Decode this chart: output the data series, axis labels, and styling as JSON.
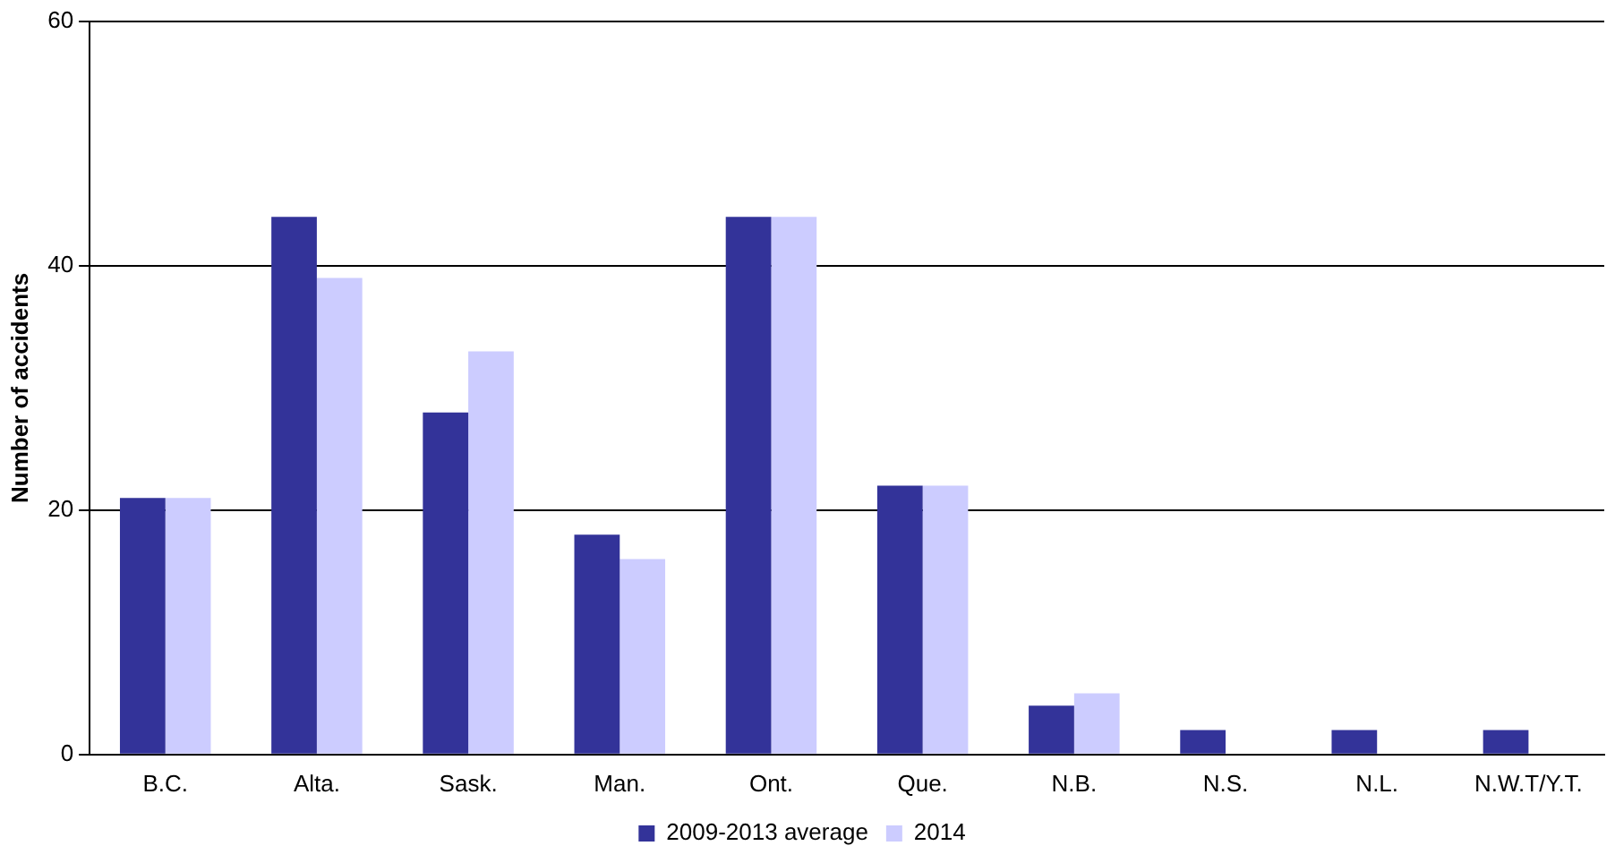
{
  "chart_data": {
    "type": "bar",
    "ylabel": "Number of accidents",
    "categories": [
      "B.C.",
      "Alta.",
      "Sask.",
      "Man.",
      "Ont.",
      "Que.",
      "N.B.",
      "N.S.",
      "N.L.",
      "N.W.T/Y.T."
    ],
    "series": [
      {
        "name": "2009-2013 average",
        "color": "#333399",
        "values": [
          21,
          44,
          28,
          18,
          44,
          22,
          4,
          2,
          2,
          2
        ]
      },
      {
        "name": "2014",
        "color": "#ccccff",
        "values": [
          21,
          39,
          33,
          16,
          44,
          22,
          5,
          0,
          0,
          0
        ]
      }
    ],
    "ylim": [
      0,
      60
    ],
    "yticks": [
      0,
      20,
      40,
      60
    ],
    "grid": "y",
    "legend": "bottom"
  }
}
